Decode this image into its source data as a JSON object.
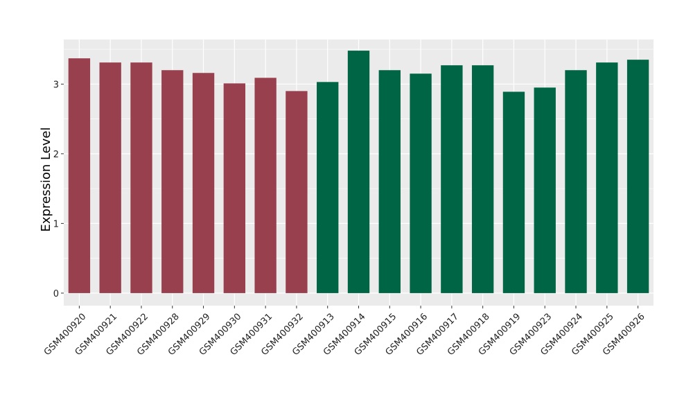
{
  "chart_data": {
    "type": "bar",
    "title": "",
    "xlabel": "",
    "ylabel": "Expression Level",
    "ylim": [
      -0.18,
      3.64
    ],
    "yticks": [
      0,
      1,
      2,
      3
    ],
    "grid": true,
    "legend": "none",
    "categories": [
      "GSM400920",
      "GSM400921",
      "GSM400922",
      "GSM400928",
      "GSM400929",
      "GSM400930",
      "GSM400931",
      "GSM400932",
      "GSM400913",
      "GSM400914",
      "GSM400915",
      "GSM400916",
      "GSM400917",
      "GSM400918",
      "GSM400919",
      "GSM400923",
      "GSM400924",
      "GSM400925",
      "GSM400926"
    ],
    "values": [
      3.37,
      3.31,
      3.31,
      3.2,
      3.16,
      3.01,
      3.09,
      2.9,
      3.03,
      3.48,
      3.2,
      3.15,
      3.27,
      3.27,
      2.89,
      2.95,
      3.2,
      3.31,
      3.35
    ],
    "groups": [
      1,
      1,
      1,
      1,
      1,
      1,
      1,
      1,
      2,
      2,
      2,
      2,
      2,
      2,
      2,
      2,
      2,
      2,
      2
    ],
    "colors": {
      "group1": "#98404e",
      "group2": "#006544",
      "panel": "#ebebeb",
      "grid": "#ffffff"
    }
  }
}
